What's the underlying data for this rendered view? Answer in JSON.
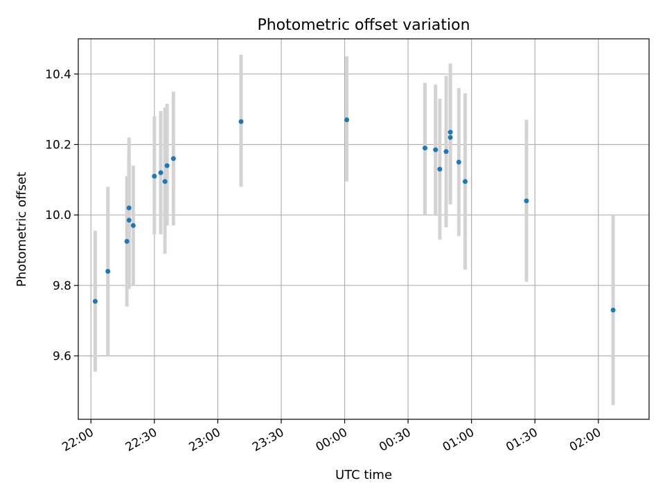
{
  "chart_data": {
    "type": "scatter",
    "title": "Photometric offset variation",
    "xlabel": "UTC time",
    "ylabel": "Photometric offset",
    "x_tick_labels": [
      "22:00",
      "22:30",
      "23:00",
      "23:30",
      "00:00",
      "00:30",
      "01:00",
      "01:30",
      "02:00"
    ],
    "y_tick_labels": [
      "9.6",
      "9.8",
      "10.0",
      "10.2",
      "10.4"
    ],
    "y_ticks": [
      9.6,
      9.8,
      10.0,
      10.2,
      10.4
    ],
    "xlim": [
      "21:54",
      "02:24"
    ],
    "ylim": [
      9.42,
      10.5
    ],
    "grid": true,
    "point_color": "#1f77b4",
    "errorbar_color": "#d3d3d3",
    "points": [
      {
        "time": "22:02",
        "y": 9.755,
        "err_low": 9.555,
        "err_high": 9.955
      },
      {
        "time": "22:08",
        "y": 9.84,
        "err_low": 9.6,
        "err_high": 10.08
      },
      {
        "time": "22:17",
        "y": 9.925,
        "err_low": 9.74,
        "err_high": 10.11
      },
      {
        "time": "22:18",
        "y": 9.985,
        "err_low": 9.79,
        "err_high": 10.18
      },
      {
        "time": "22:18",
        "y": 10.02,
        "err_low": 9.82,
        "err_high": 10.22
      },
      {
        "time": "22:20",
        "y": 9.97,
        "err_low": 9.8,
        "err_high": 10.14
      },
      {
        "time": "22:30",
        "y": 10.11,
        "err_low": 9.945,
        "err_high": 10.28
      },
      {
        "time": "22:33",
        "y": 10.12,
        "err_low": 9.945,
        "err_high": 10.295
      },
      {
        "time": "22:35",
        "y": 10.095,
        "err_low": 9.89,
        "err_high": 10.305
      },
      {
        "time": "22:36",
        "y": 10.14,
        "err_low": 9.97,
        "err_high": 10.315
      },
      {
        "time": "22:39",
        "y": 10.16,
        "err_low": 9.97,
        "err_high": 10.35
      },
      {
        "time": "23:11",
        "y": 10.265,
        "err_low": 10.08,
        "err_high": 10.455
      },
      {
        "time": "00:01",
        "y": 10.27,
        "err_low": 10.095,
        "err_high": 10.45
      },
      {
        "time": "00:38",
        "y": 10.19,
        "err_low": 10.0,
        "err_high": 10.375
      },
      {
        "time": "00:43",
        "y": 10.185,
        "err_low": 10.0,
        "err_high": 10.37
      },
      {
        "time": "00:45",
        "y": 10.13,
        "err_low": 9.93,
        "err_high": 10.33
      },
      {
        "time": "00:48",
        "y": 10.18,
        "err_low": 9.965,
        "err_high": 10.395
      },
      {
        "time": "00:50",
        "y": 10.235,
        "err_low": 10.04,
        "err_high": 10.43
      },
      {
        "time": "00:50",
        "y": 10.22,
        "err_low": 10.03,
        "err_high": 10.41
      },
      {
        "time": "00:54",
        "y": 10.15,
        "err_low": 9.94,
        "err_high": 10.36
      },
      {
        "time": "00:57",
        "y": 10.095,
        "err_low": 9.845,
        "err_high": 10.345
      },
      {
        "time": "01:26",
        "y": 10.04,
        "err_low": 9.81,
        "err_high": 10.27
      },
      {
        "time": "02:07",
        "y": 9.73,
        "err_low": 9.46,
        "err_high": 10.0
      }
    ]
  }
}
